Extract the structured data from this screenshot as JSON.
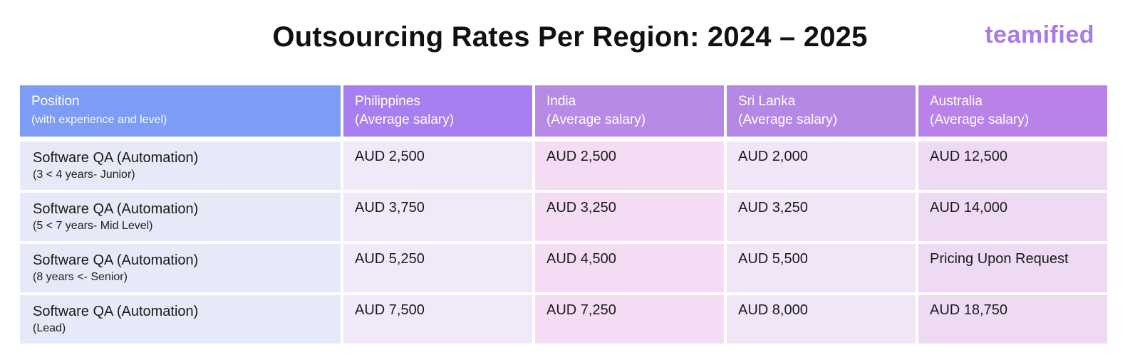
{
  "title": "Outsourcing Rates Per Region: 2024 – 2025",
  "logo": "teamified",
  "headers": {
    "position": {
      "label": "Position",
      "sub": "(with experience and level)"
    },
    "philippines": {
      "label": "Philippines",
      "sub": "(Average salary)"
    },
    "india": {
      "label": "India",
      "sub": "(Average salary)"
    },
    "sri_lanka": {
      "label": "Sri Lanka",
      "sub": "(Average salary)"
    },
    "australia": {
      "label": "Australia",
      "sub": "(Average salary)"
    }
  },
  "rows": [
    {
      "position": "Software QA (Automation)",
      "level": "(3 < 4 years- Junior)",
      "philippines": "AUD 2,500",
      "india": "AUD 2,500",
      "sri_lanka": "AUD 2,000",
      "australia": "AUD 12,500"
    },
    {
      "position": "Software QA (Automation)",
      "level": "(5 < 7 years- Mid Level)",
      "philippines": "AUD 3,750",
      "india": "AUD 3,250",
      "sri_lanka": "AUD 3,250",
      "australia": "AUD 14,000"
    },
    {
      "position": "Software QA (Automation)",
      "level": "(8 years <- Senior)",
      "philippines": "AUD 5,250",
      "india": "AUD 4,500",
      "sri_lanka": "AUD 5,500",
      "australia": "Pricing Upon Request"
    },
    {
      "position": "Software QA (Automation)",
      "level": "(Lead)",
      "philippines": "AUD 7,500",
      "india": "AUD 7,250",
      "sri_lanka": "AUD 8,000",
      "australia": "AUD 18,750"
    }
  ]
}
